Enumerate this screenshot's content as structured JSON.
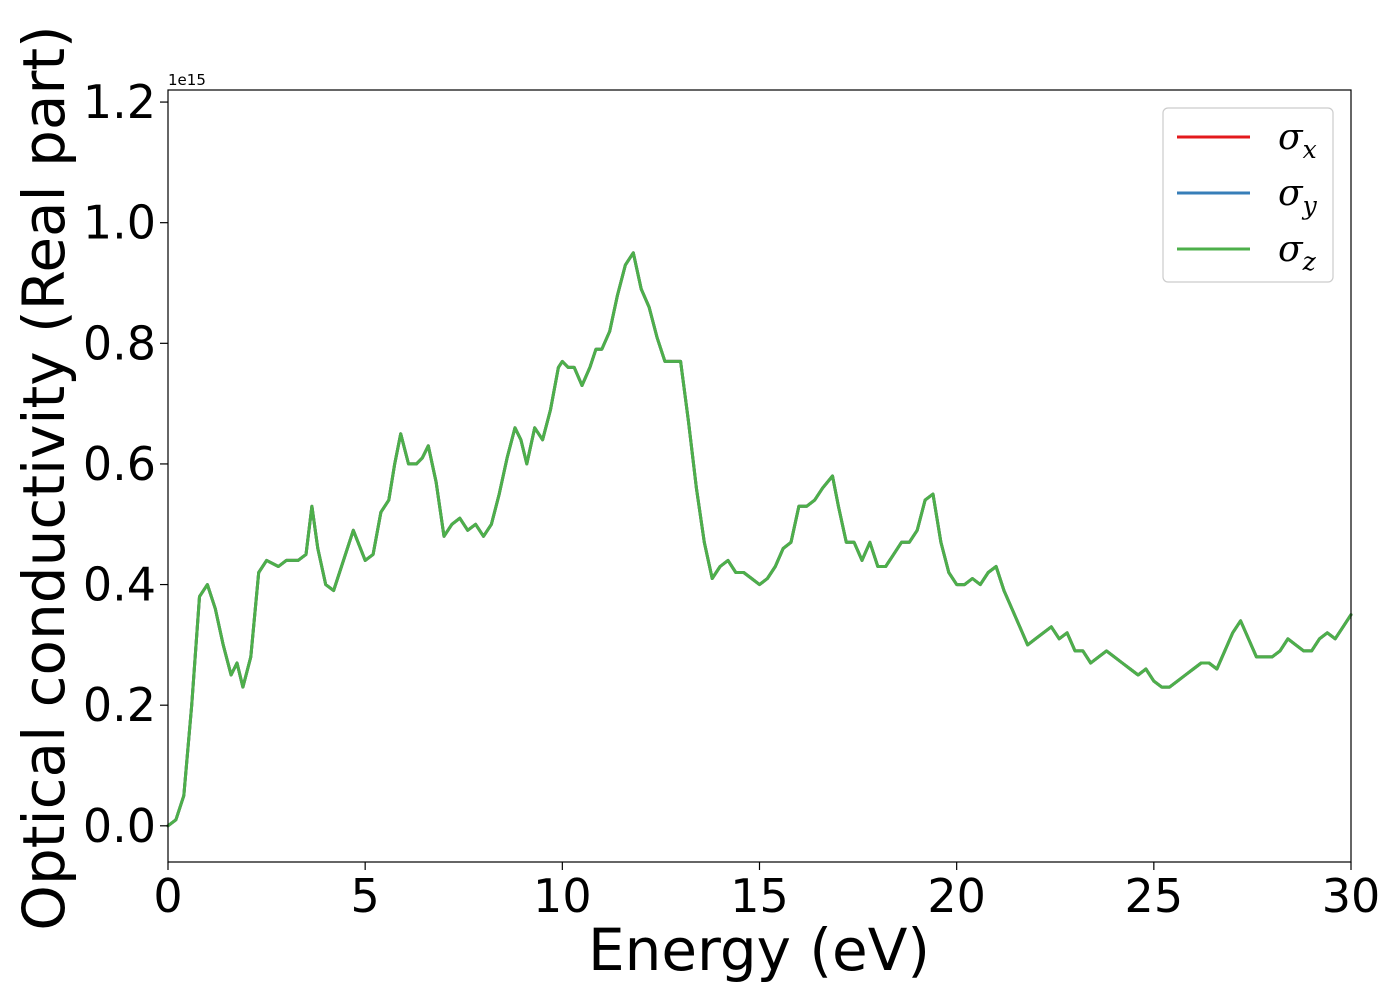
{
  "chart_data": {
    "type": "line",
    "xlabel": "Energy (eV)",
    "ylabel": "Optical conductivity (Real part)",
    "y_offset_text": "1e15",
    "xlim": [
      0,
      30
    ],
    "ylim": [
      -0.06,
      1.22
    ],
    "x_ticks": [
      0,
      5,
      10,
      15,
      20,
      25,
      30
    ],
    "x_tick_labels": [
      "0",
      "5",
      "10",
      "15",
      "20",
      "25",
      "30"
    ],
    "y_ticks": [
      0.0,
      0.2,
      0.4,
      0.6,
      0.8,
      1.0,
      1.2
    ],
    "y_tick_labels": [
      "0.0",
      "0.2",
      "0.4",
      "0.6",
      "0.8",
      "1.0",
      "1.2"
    ],
    "grid": false,
    "legend_position": "top-right",
    "legend": [
      {
        "base": "σ",
        "sub": "x",
        "color": "#e31a1c"
      },
      {
        "base": "σ",
        "sub": "y",
        "color": "#377eb8"
      },
      {
        "base": "σ",
        "sub": "z",
        "color": "#4daf4a"
      }
    ],
    "x": [
      0,
      0.2,
      0.4,
      0.6,
      0.8,
      1.0,
      1.2,
      1.4,
      1.6,
      1.75,
      1.9,
      2.1,
      2.3,
      2.5,
      2.8,
      3.0,
      3.3,
      3.5,
      3.65,
      3.8,
      4.0,
      4.2,
      4.4,
      4.7,
      5.0,
      5.2,
      5.4,
      5.6,
      5.75,
      5.9,
      6.1,
      6.3,
      6.45,
      6.6,
      6.8,
      7.0,
      7.2,
      7.4,
      7.6,
      7.8,
      8.0,
      8.2,
      8.4,
      8.6,
      8.8,
      8.95,
      9.1,
      9.3,
      9.5,
      9.7,
      9.9,
      10.0,
      10.15,
      10.3,
      10.5,
      10.7,
      10.85,
      11.0,
      11.2,
      11.4,
      11.6,
      11.8,
      12.0,
      12.2,
      12.4,
      12.6,
      12.8,
      13.0,
      13.2,
      13.4,
      13.6,
      13.8,
      14.0,
      14.2,
      14.4,
      14.6,
      14.8,
      15.0,
      15.2,
      15.4,
      15.6,
      15.8,
      16.0,
      16.2,
      16.4,
      16.6,
      16.85,
      17.0,
      17.2,
      17.4,
      17.6,
      17.8,
      18.0,
      18.2,
      18.4,
      18.6,
      18.8,
      19.0,
      19.2,
      19.4,
      19.6,
      19.8,
      20.0,
      20.2,
      20.4,
      20.6,
      20.8,
      21.0,
      21.2,
      21.4,
      21.6,
      21.8,
      22.0,
      22.2,
      22.4,
      22.6,
      22.8,
      23.0,
      23.2,
      23.4,
      23.6,
      23.8,
      24.0,
      24.2,
      24.4,
      24.6,
      24.8,
      25.0,
      25.2,
      25.4,
      25.6,
      25.8,
      26.0,
      26.2,
      26.4,
      26.6,
      26.8,
      27.0,
      27.2,
      27.4,
      27.6,
      27.8,
      28.0,
      28.2,
      28.4,
      28.6,
      28.8,
      29.0,
      29.2,
      29.4,
      29.6,
      29.8,
      30.0
    ],
    "series": [
      {
        "name": "σx",
        "color": "#e31a1c",
        "values": [
          0.0,
          0.01,
          0.05,
          0.2,
          0.38,
          0.4,
          0.36,
          0.3,
          0.25,
          0.27,
          0.23,
          0.28,
          0.42,
          0.44,
          0.43,
          0.44,
          0.44,
          0.45,
          0.53,
          0.46,
          0.4,
          0.39,
          0.43,
          0.49,
          0.44,
          0.45,
          0.52,
          0.54,
          0.6,
          0.65,
          0.6,
          0.6,
          0.61,
          0.63,
          0.57,
          0.48,
          0.5,
          0.51,
          0.49,
          0.5,
          0.48,
          0.5,
          0.55,
          0.61,
          0.66,
          0.64,
          0.6,
          0.66,
          0.64,
          0.69,
          0.76,
          0.77,
          0.76,
          0.76,
          0.73,
          0.76,
          0.79,
          0.79,
          0.82,
          0.88,
          0.93,
          0.95,
          0.89,
          0.86,
          0.81,
          0.77,
          0.77,
          0.77,
          0.67,
          0.56,
          0.47,
          0.41,
          0.43,
          0.44,
          0.42,
          0.42,
          0.41,
          0.4,
          0.41,
          0.43,
          0.46,
          0.47,
          0.53,
          0.53,
          0.54,
          0.56,
          0.58,
          0.53,
          0.47,
          0.47,
          0.44,
          0.47,
          0.43,
          0.43,
          0.45,
          0.47,
          0.47,
          0.49,
          0.54,
          0.55,
          0.47,
          0.42,
          0.4,
          0.4,
          0.41,
          0.4,
          0.42,
          0.43,
          0.39,
          0.36,
          0.33,
          0.3,
          0.31,
          0.32,
          0.33,
          0.31,
          0.32,
          0.29,
          0.29,
          0.27,
          0.28,
          0.29,
          0.28,
          0.27,
          0.26,
          0.25,
          0.26,
          0.24,
          0.23,
          0.23,
          0.24,
          0.25,
          0.26,
          0.27,
          0.27,
          0.26,
          0.29,
          0.32,
          0.34,
          0.31,
          0.28,
          0.28,
          0.28,
          0.29,
          0.31,
          0.3,
          0.29,
          0.29,
          0.31,
          0.32,
          0.31,
          0.33,
          0.35
        ]
      },
      {
        "name": "σy",
        "color": "#377eb8",
        "values": [
          0.0,
          0.01,
          0.05,
          0.2,
          0.38,
          0.4,
          0.36,
          0.3,
          0.25,
          0.27,
          0.23,
          0.28,
          0.42,
          0.44,
          0.43,
          0.44,
          0.44,
          0.45,
          0.53,
          0.46,
          0.4,
          0.39,
          0.43,
          0.49,
          0.44,
          0.45,
          0.52,
          0.54,
          0.6,
          0.65,
          0.6,
          0.6,
          0.61,
          0.63,
          0.57,
          0.48,
          0.5,
          0.51,
          0.49,
          0.5,
          0.48,
          0.5,
          0.55,
          0.61,
          0.66,
          0.64,
          0.6,
          0.66,
          0.64,
          0.69,
          0.76,
          0.77,
          0.76,
          0.76,
          0.73,
          0.76,
          0.79,
          0.79,
          0.82,
          0.88,
          0.93,
          0.95,
          0.89,
          0.86,
          0.81,
          0.77,
          0.77,
          0.77,
          0.67,
          0.56,
          0.47,
          0.41,
          0.43,
          0.44,
          0.42,
          0.42,
          0.41,
          0.4,
          0.41,
          0.43,
          0.46,
          0.47,
          0.53,
          0.53,
          0.54,
          0.56,
          0.58,
          0.53,
          0.47,
          0.47,
          0.44,
          0.47,
          0.43,
          0.43,
          0.45,
          0.47,
          0.47,
          0.49,
          0.54,
          0.55,
          0.47,
          0.42,
          0.4,
          0.4,
          0.41,
          0.4,
          0.42,
          0.43,
          0.39,
          0.36,
          0.33,
          0.3,
          0.31,
          0.32,
          0.33,
          0.31,
          0.32,
          0.29,
          0.29,
          0.27,
          0.28,
          0.29,
          0.28,
          0.27,
          0.26,
          0.25,
          0.26,
          0.24,
          0.23,
          0.23,
          0.24,
          0.25,
          0.26,
          0.27,
          0.27,
          0.26,
          0.29,
          0.32,
          0.34,
          0.31,
          0.28,
          0.28,
          0.28,
          0.29,
          0.31,
          0.3,
          0.29,
          0.29,
          0.31,
          0.32,
          0.31,
          0.33,
          0.35
        ]
      },
      {
        "name": "σz",
        "color": "#4daf4a",
        "values": [
          0.0,
          0.01,
          0.05,
          0.2,
          0.38,
          0.4,
          0.36,
          0.3,
          0.25,
          0.27,
          0.23,
          0.28,
          0.42,
          0.44,
          0.43,
          0.44,
          0.44,
          0.45,
          0.53,
          0.46,
          0.4,
          0.39,
          0.43,
          0.49,
          0.44,
          0.45,
          0.52,
          0.54,
          0.6,
          0.65,
          0.6,
          0.6,
          0.61,
          0.63,
          0.57,
          0.48,
          0.5,
          0.51,
          0.49,
          0.5,
          0.48,
          0.5,
          0.55,
          0.61,
          0.66,
          0.64,
          0.6,
          0.66,
          0.64,
          0.69,
          0.76,
          0.77,
          0.76,
          0.76,
          0.73,
          0.76,
          0.79,
          0.79,
          0.82,
          0.88,
          0.93,
          0.95,
          0.89,
          0.86,
          0.81,
          0.77,
          0.77,
          0.77,
          0.67,
          0.56,
          0.47,
          0.41,
          0.43,
          0.44,
          0.42,
          0.42,
          0.41,
          0.4,
          0.41,
          0.43,
          0.46,
          0.47,
          0.53,
          0.53,
          0.54,
          0.56,
          0.58,
          0.53,
          0.47,
          0.47,
          0.44,
          0.47,
          0.43,
          0.43,
          0.45,
          0.47,
          0.47,
          0.49,
          0.54,
          0.55,
          0.47,
          0.42,
          0.4,
          0.4,
          0.41,
          0.4,
          0.42,
          0.43,
          0.39,
          0.36,
          0.33,
          0.3,
          0.31,
          0.32,
          0.33,
          0.31,
          0.32,
          0.29,
          0.29,
          0.27,
          0.28,
          0.29,
          0.28,
          0.27,
          0.26,
          0.25,
          0.26,
          0.24,
          0.23,
          0.23,
          0.24,
          0.25,
          0.26,
          0.27,
          0.27,
          0.26,
          0.29,
          0.32,
          0.34,
          0.31,
          0.28,
          0.28,
          0.28,
          0.29,
          0.31,
          0.3,
          0.29,
          0.29,
          0.31,
          0.32,
          0.31,
          0.33,
          0.35
        ]
      }
    ]
  }
}
